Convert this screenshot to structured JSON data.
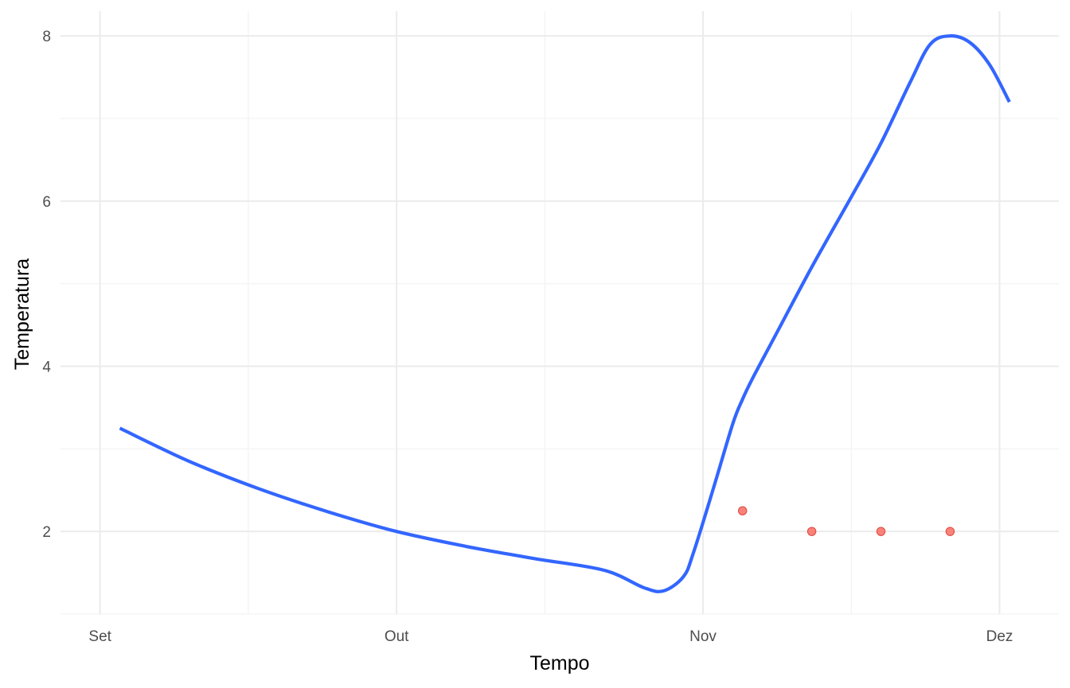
{
  "chart_data": {
    "type": "line",
    "xlabel": "Tempo",
    "ylabel": "Temperatura",
    "x_ticks": [
      {
        "date": "2023-09-01",
        "label": "Set"
      },
      {
        "date": "2023-10-01",
        "label": "Out"
      },
      {
        "date": "2023-11-01",
        "label": "Nov"
      },
      {
        "date": "2023-12-01",
        "label": "Dez"
      }
    ],
    "x_minor_ticks": [
      "2023-09-16",
      "2023-10-16",
      "2023-11-16"
    ],
    "xlim": [
      "2023-08-28",
      "2023-12-07"
    ],
    "y_ticks": [
      2,
      4,
      6,
      8
    ],
    "ylim": [
      1.0,
      8.3
    ],
    "grid": true,
    "series": [
      {
        "type": "line",
        "color": "#3366FF",
        "x": [
          "2023-09-03",
          "2023-09-10",
          "2023-09-17",
          "2023-09-24",
          "2023-10-01",
          "2023-10-08",
          "2023-10-15",
          "2023-10-22",
          "2023-10-26",
          "2023-10-28",
          "2023-10-30",
          "2023-10-31",
          "2023-11-02",
          "2023-11-04",
          "2023-11-05",
          "2023-11-06",
          "2023-11-08",
          "2023-11-12",
          "2023-11-16",
          "2023-11-19",
          "2023-11-22",
          "2023-11-24",
          "2023-11-26",
          "2023-11-28",
          "2023-11-30",
          "2023-12-02"
        ],
        "y": [
          3.25,
          2.85,
          2.52,
          2.24,
          2.0,
          1.82,
          1.67,
          1.53,
          1.32,
          1.28,
          1.45,
          1.73,
          2.5,
          3.3,
          3.6,
          3.85,
          4.3,
          5.2,
          6.05,
          6.7,
          7.45,
          7.9,
          8.0,
          7.92,
          7.65,
          7.2
        ]
      },
      {
        "type": "scatter",
        "color": "#F8766D",
        "x": [
          "2023-11-05",
          "2023-11-12",
          "2023-11-19",
          "2023-11-26"
        ],
        "y": [
          2.25,
          2.0,
          2.0,
          2.0
        ]
      }
    ]
  }
}
